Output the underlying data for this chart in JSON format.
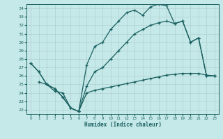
{
  "xlabel": "Humidex (Indice chaleur)",
  "bg_color": "#c5e8e8",
  "line_color": "#1a6060",
  "grid_color": "#b0d0d0",
  "xlim": [
    -0.5,
    23.5
  ],
  "ylim": [
    21.5,
    34.5
  ],
  "xticks": [
    0,
    1,
    2,
    3,
    4,
    5,
    6,
    7,
    8,
    9,
    10,
    11,
    12,
    13,
    14,
    15,
    16,
    17,
    18,
    19,
    20,
    21,
    22,
    23
  ],
  "yticks": [
    22,
    23,
    24,
    25,
    26,
    27,
    28,
    29,
    30,
    31,
    32,
    33,
    34
  ],
  "line1_x": [
    0,
    1,
    2,
    3,
    4,
    5,
    6,
    7,
    8,
    9,
    10,
    11,
    12,
    13,
    14,
    15,
    16,
    17,
    18,
    19,
    20,
    21,
    22,
    23
  ],
  "line1_y": [
    27.5,
    26.5,
    25.0,
    24.5,
    23.5,
    22.2,
    21.8,
    27.3,
    29.5,
    30.0,
    31.5,
    32.5,
    33.5,
    33.8,
    33.2,
    34.2,
    34.5,
    34.3,
    32.2,
    32.5,
    30.0,
    30.5,
    26.0,
    26.0
  ],
  "line2_x": [
    0,
    1,
    2,
    3,
    4,
    5,
    6,
    7,
    8,
    9,
    10,
    11,
    12,
    13,
    14,
    15,
    16,
    17,
    18,
    19,
    20,
    21,
    22,
    23
  ],
  "line2_y": [
    27.5,
    26.5,
    25.0,
    24.5,
    23.5,
    22.2,
    21.8,
    24.8,
    26.5,
    27.0,
    28.0,
    29.0,
    30.0,
    31.0,
    31.5,
    32.0,
    32.3,
    32.5,
    32.2,
    32.5,
    30.0,
    30.5,
    26.0,
    26.0
  ],
  "line3_x": [
    1,
    2,
    3,
    4,
    5,
    6,
    7,
    8,
    9,
    10,
    11,
    12,
    13,
    14,
    15,
    16,
    17,
    18,
    19,
    20,
    21,
    22,
    23
  ],
  "line3_y": [
    25.3,
    25.0,
    24.2,
    24.0,
    22.2,
    21.8,
    24.0,
    24.3,
    24.5,
    24.7,
    24.9,
    25.1,
    25.3,
    25.5,
    25.7,
    25.9,
    26.1,
    26.2,
    26.3,
    26.3,
    26.3,
    26.1,
    26.0
  ]
}
